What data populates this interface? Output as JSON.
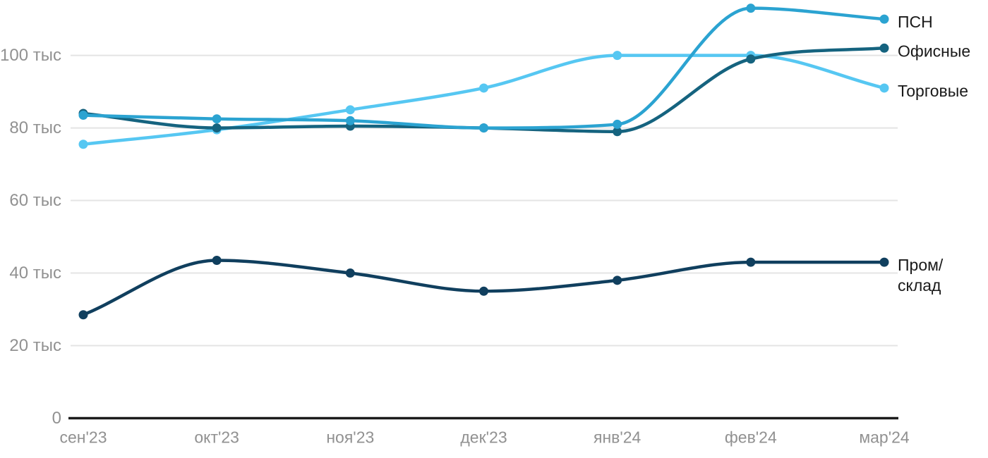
{
  "chart_data": {
    "type": "line",
    "title": "",
    "unit": "тыс",
    "x_categories": [
      "сен'23",
      "окт'23",
      "ноя'23",
      "дек'23",
      "янв'24",
      "фев'24",
      "мар'24"
    ],
    "series": [
      {
        "name": "ПСН",
        "label_lines": [
          "ПСН"
        ],
        "color": "#2BA3D1",
        "values": [
          83.5,
          82.5,
          82,
          80,
          81,
          113,
          110
        ]
      },
      {
        "name": "Офисные",
        "label_lines": [
          "Офисные"
        ],
        "color": "#15637F",
        "values": [
          84,
          80,
          80.5,
          80,
          79,
          99,
          102
        ]
      },
      {
        "name": "Торговые",
        "label_lines": [
          "Торговые"
        ],
        "color": "#56C7F2",
        "values": [
          75.5,
          79.5,
          85,
          91,
          100,
          100,
          91
        ]
      },
      {
        "name": "Пром/склад",
        "label_lines": [
          "Пром/",
          "склад"
        ],
        "color": "#103F5E",
        "values": [
          28.5,
          43.5,
          40,
          35,
          38,
          43,
          43
        ]
      }
    ],
    "y_ticks": [
      {
        "value": 0,
        "label": "0"
      },
      {
        "value": 20,
        "label": "20 тыс"
      },
      {
        "value": 40,
        "label": "40 тыс"
      },
      {
        "value": 60,
        "label": "60 тыс"
      },
      {
        "value": 80,
        "label": "80 тыс"
      },
      {
        "value": 100,
        "label": "100 тыс"
      }
    ],
    "ylim": [
      0,
      116
    ],
    "grid": "horizontal",
    "legend_position": "right-end-of-line",
    "interpolation": "monotone"
  },
  "styles": {
    "grid_color": "#E4E4E4",
    "axis_color": "#1C1C1C",
    "tick_text_color": "#919191",
    "legend_text_color": "#1A1A1A"
  }
}
